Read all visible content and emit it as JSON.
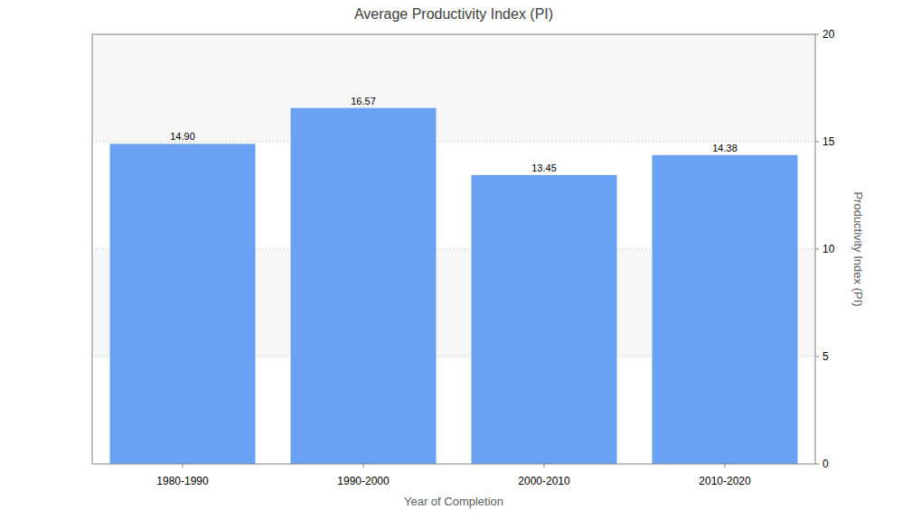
{
  "chart_data": {
    "type": "bar",
    "title": "Average Productivity Index (PI)",
    "x_label": "Year of Completion",
    "y_label": "Productivity Index (PI)",
    "categories": [
      "1980-1990",
      "1990-2000",
      "2000-2010",
      "2010-2020"
    ],
    "values": [
      14.9,
      16.57,
      13.45,
      14.38
    ],
    "value_labels": [
      "14.90",
      "16.57",
      "13.45",
      "14.38"
    ],
    "color": "#6aa1f5",
    "ylim": [
      0,
      20
    ],
    "yticks": [
      0,
      5,
      10,
      15,
      20
    ],
    "grid": true,
    "data_labels": true
  }
}
